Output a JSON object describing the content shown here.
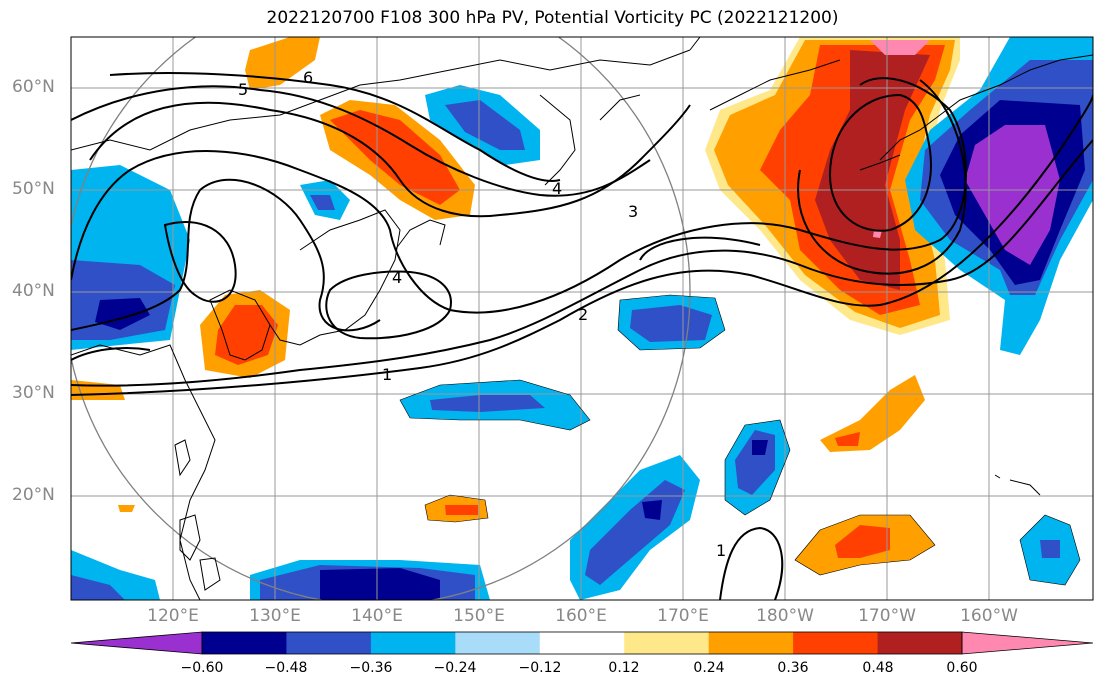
{
  "title": "2022120700 F108 300 hPa PV, Potential Vorticity PC (2022121200)",
  "map": {
    "lat_labels": [
      "60°N",
      "50°N",
      "40°N",
      "30°N",
      "20°N"
    ],
    "lon_labels": [
      "120°E",
      "130°E",
      "140°E",
      "150°E",
      "160°E",
      "170°E",
      "180°W",
      "170°W",
      "160°W"
    ],
    "contour_labels": [
      "6",
      "5",
      "4",
      "3",
      "4",
      "1",
      "2",
      "1"
    ]
  },
  "colorbar": {
    "colors": [
      "#9b30d0",
      "#000090",
      "#3050c8",
      "#00b4f0",
      "#a8dcf8",
      "#ffffff",
      "#ffe88a",
      "#ffa000",
      "#ff4000",
      "#b02020",
      "#ff88b0"
    ],
    "tick_labels": [
      "−0.60",
      "−0.48",
      "−0.36",
      "−0.24",
      "−0.12",
      "0.12",
      "0.24",
      "0.36",
      "0.48",
      "0.60"
    ]
  }
}
